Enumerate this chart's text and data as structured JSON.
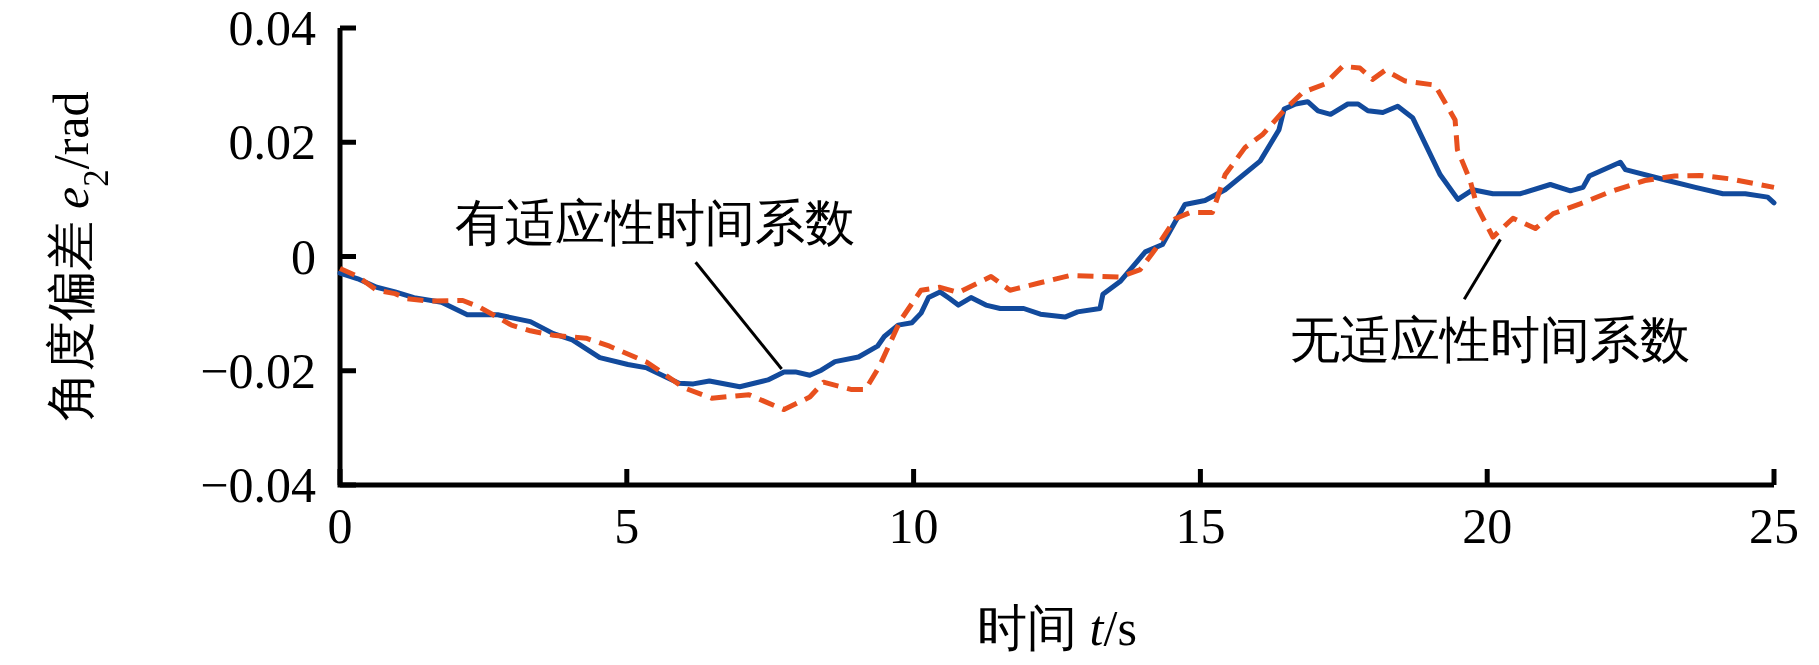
{
  "chart_data": {
    "type": "line",
    "xlabel": "时间 *t*/s",
    "ylabel": "角度偏差 *e*$_{2}$/rad",
    "xlim": [
      0,
      25
    ],
    "ylim": [
      -0.04,
      0.04
    ],
    "xticks": [
      0,
      5,
      10,
      15,
      20,
      25
    ],
    "yticks": [
      -0.04,
      -0.02,
      0,
      0.02,
      0.04
    ],
    "series": [
      {
        "name": "有适应性时间系数",
        "color": "#124a9c",
        "line_style": "solid",
        "x": [
          0,
          0.31,
          0.64,
          0.96,
          1.29,
          1.77,
          2.22,
          2.75,
          3.32,
          3.72,
          4.05,
          4.53,
          5.02,
          5.35,
          5.91,
          6.16,
          6.44,
          6.97,
          7.46,
          7.74,
          7.94,
          8.19,
          8.39,
          8.63,
          9.04,
          9.37,
          9.49,
          9.73,
          9.97,
          10.13,
          10.26,
          10.46,
          10.62,
          10.78,
          11.0,
          11.26,
          11.51,
          11.92,
          12.21,
          12.64,
          12.86,
          13.25,
          13.3,
          13.6,
          14.04,
          14.34,
          14.73,
          15.08,
          15.43,
          16.04,
          16.37,
          16.46,
          16.66,
          16.87,
          17.05,
          17.27,
          17.57,
          17.75,
          17.92,
          18.18,
          18.44,
          18.7,
          19.18,
          19.49,
          19.75,
          20.1,
          20.58,
          21.1,
          21.45,
          21.67,
          21.78,
          22.32,
          22.41,
          23.11,
          23.63,
          24.11,
          24.5,
          24.89,
          25
        ],
        "values": [
          -0.0029,
          -0.0039,
          -0.0054,
          -0.0062,
          -0.0072,
          -0.008,
          -0.0102,
          -0.0102,
          -0.0114,
          -0.0135,
          -0.0146,
          -0.0177,
          -0.0189,
          -0.0195,
          -0.0222,
          -0.0223,
          -0.0218,
          -0.0228,
          -0.0216,
          -0.0202,
          -0.0202,
          -0.0208,
          -0.0199,
          -0.0184,
          -0.0176,
          -0.0157,
          -0.014,
          -0.012,
          -0.0116,
          -0.0099,
          -0.0072,
          -0.0062,
          -0.0073,
          -0.0085,
          -0.0072,
          -0.0085,
          -0.0091,
          -0.0091,
          -0.0101,
          -0.0106,
          -0.0097,
          -0.0091,
          -0.0066,
          -0.0044,
          0.0008,
          0.0021,
          0.0091,
          0.0098,
          0.0117,
          0.0167,
          0.0222,
          0.0258,
          0.0267,
          0.0271,
          0.0255,
          0.0249,
          0.0267,
          0.0267,
          0.0255,
          0.0252,
          0.0263,
          0.0243,
          0.0143,
          0.01,
          0.0117,
          0.011,
          0.011,
          0.0126,
          0.0115,
          0.0121,
          0.0141,
          0.0165,
          0.0152,
          0.0134,
          0.0121,
          0.011,
          0.011,
          0.0104,
          0.0094
        ]
      },
      {
        "name": "无适应性时间系数",
        "color": "#e8501e",
        "line_style": "dashed",
        "x": [
          0,
          0.31,
          0.64,
          0.96,
          1.17,
          1.53,
          2.14,
          2.42,
          2.99,
          3.32,
          3.72,
          4.29,
          4.7,
          5.35,
          6.0,
          6.48,
          7.13,
          7.41,
          7.74,
          8.19,
          8.43,
          8.92,
          9.16,
          9.4,
          9.77,
          10.13,
          10.46,
          10.78,
          11.35,
          11.68,
          12.17,
          12.73,
          13.6,
          13.95,
          14.21,
          14.56,
          14.82,
          15.21,
          15.43,
          15.78,
          16.08,
          16.47,
          16.78,
          17.17,
          17.48,
          17.78,
          18.0,
          18.22,
          18.57,
          19.09,
          19.44,
          19.48,
          19.7,
          19.83,
          20.1,
          20.45,
          20.84,
          21.15,
          21.62,
          22.14,
          22.75,
          23.27,
          23.71,
          24.23,
          25
        ],
        "values": [
          -0.0021,
          -0.0035,
          -0.0059,
          -0.0065,
          -0.0074,
          -0.0078,
          -0.0077,
          -0.0088,
          -0.012,
          -0.013,
          -0.0138,
          -0.0143,
          -0.0157,
          -0.0185,
          -0.023,
          -0.0248,
          -0.0242,
          -0.0254,
          -0.0268,
          -0.0246,
          -0.022,
          -0.0233,
          -0.0233,
          -0.0193,
          -0.0112,
          -0.0059,
          -0.0054,
          -0.0063,
          -0.0035,
          -0.0059,
          -0.0047,
          -0.0033,
          -0.0036,
          -0.0023,
          0.0012,
          0.0066,
          0.0077,
          0.0077,
          0.0143,
          0.0191,
          0.0213,
          0.0257,
          0.0287,
          0.0302,
          0.0333,
          0.033,
          0.031,
          0.0326,
          0.0307,
          0.03,
          0.0239,
          0.0187,
          0.0134,
          0.0086,
          0.0034,
          0.0067,
          0.0049,
          0.0075,
          0.0092,
          0.0113,
          0.0133,
          0.0141,
          0.0142,
          0.0136,
          0.0121
        ]
      }
    ]
  }
}
